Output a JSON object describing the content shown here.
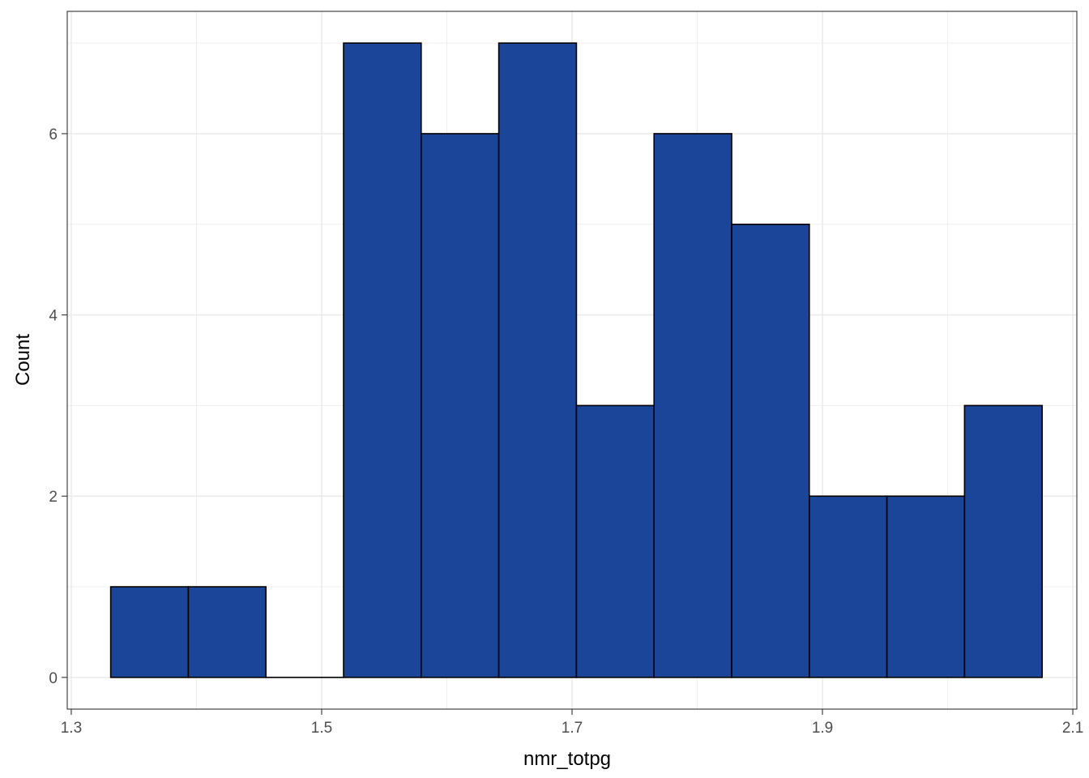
{
  "chart_data": {
    "type": "bar",
    "subtype": "histogram",
    "title": "",
    "xlabel": "nmr_totpg",
    "ylabel": "Count",
    "bins": [
      {
        "x0": 1.3315,
        "x1": 1.3935,
        "count": 1
      },
      {
        "x0": 1.3935,
        "x1": 1.4555,
        "count": 1
      },
      {
        "x0": 1.4555,
        "x1": 1.5175,
        "count": 0
      },
      {
        "x0": 1.5175,
        "x1": 1.5795,
        "count": 7
      },
      {
        "x0": 1.5795,
        "x1": 1.6415,
        "count": 6
      },
      {
        "x0": 1.6415,
        "x1": 1.7035,
        "count": 7
      },
      {
        "x0": 1.7035,
        "x1": 1.7655,
        "count": 3
      },
      {
        "x0": 1.7655,
        "x1": 1.8275,
        "count": 6
      },
      {
        "x0": 1.8275,
        "x1": 1.8895,
        "count": 5
      },
      {
        "x0": 1.8895,
        "x1": 1.9515,
        "count": 2
      },
      {
        "x0": 1.9515,
        "x1": 2.0135,
        "count": 2
      },
      {
        "x0": 2.0135,
        "x1": 2.0755,
        "count": 3
      }
    ],
    "xlim": [
      1.2968,
      2.1032
    ],
    "ylim": [
      -0.35,
      7.35
    ],
    "x_ticks": [
      1.3,
      1.5,
      1.7,
      1.9,
      2.1
    ],
    "x_tick_labels": [
      "1.3",
      "1.5",
      "1.7",
      "1.9",
      "2.1"
    ],
    "x_minor_ticks": [
      1.4,
      1.6,
      1.8,
      2.0
    ],
    "y_ticks": [
      0,
      2,
      4,
      6
    ],
    "y_tick_labels": [
      "0",
      "2",
      "4",
      "6"
    ],
    "y_minor_ticks": [
      1,
      3,
      5,
      7
    ],
    "grid": true,
    "bar_color": "#1A4599",
    "bar_edge_color": "#000000",
    "panel_border_color": "#333333",
    "grid_color": "#ebebeb"
  }
}
